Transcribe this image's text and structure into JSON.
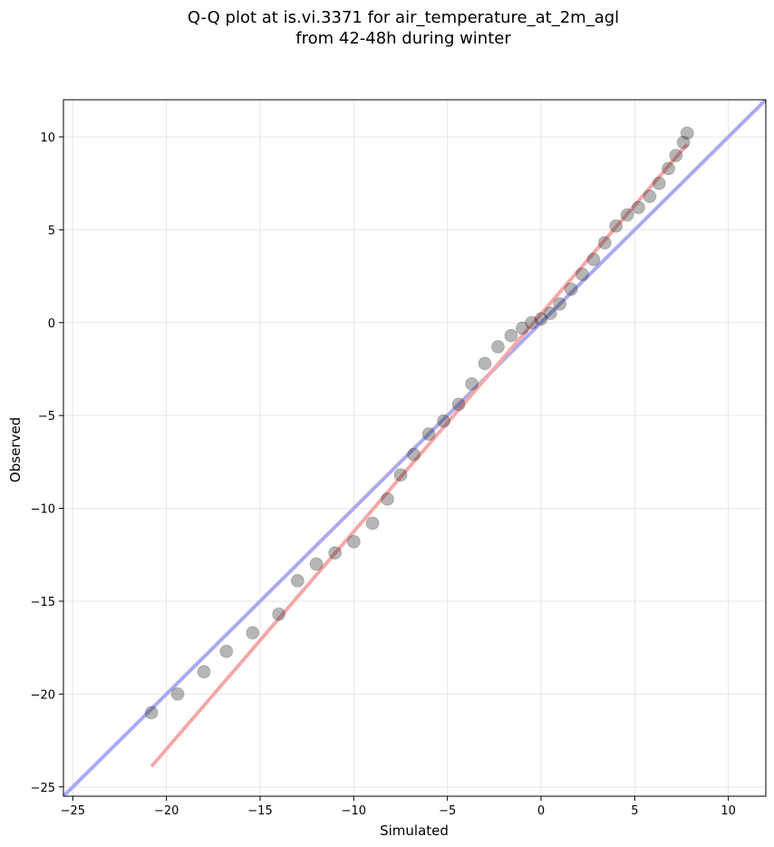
{
  "chart_data": {
    "type": "scatter",
    "title_line1": "Q-Q plot at is.vi.3371 for air_temperature_at_2m_agl",
    "title_line2": "from 42-48h during winter",
    "xlabel": "Simulated",
    "ylabel": "Observed",
    "xlim": [
      -25.5,
      12
    ],
    "ylim": [
      -25.5,
      12
    ],
    "xticks": [
      -25,
      -20,
      -15,
      -10,
      -5,
      0,
      5,
      10
    ],
    "yticks": [
      -25,
      -20,
      -15,
      -10,
      -5,
      0,
      5,
      10
    ],
    "xtick_labels": [
      "−25",
      "−20",
      "−15",
      "−10",
      "−5",
      "0",
      "5",
      "10"
    ],
    "ytick_labels": [
      "−25",
      "−20",
      "−15",
      "−10",
      "−5",
      "0",
      "5",
      "10"
    ],
    "grid": true,
    "reference_line": {
      "color": "#aaaaf0",
      "x": [
        -25.5,
        12
      ],
      "y": [
        -25.5,
        12
      ]
    },
    "fit_line": {
      "color": "#f4a8a8",
      "x": [
        -20.8,
        7.8
      ],
      "y": [
        -23.9,
        9.6
      ]
    },
    "quantile_curve": {
      "x": [
        -20.8,
        -19.4,
        -18.0,
        -16.8,
        -15.4,
        -14.0,
        -13.0,
        -12.0,
        -11.0,
        -10.0,
        -9.0,
        -8.2,
        -7.5,
        -6.8,
        -6.0,
        -5.2,
        -4.4,
        -3.7,
        -3.0,
        -2.3,
        -1.6,
        -1.0,
        -0.5,
        0.0,
        0.5,
        1.0,
        1.6,
        2.2,
        2.8,
        3.4,
        4.0,
        4.6,
        5.2,
        5.8,
        6.3,
        6.8,
        7.2,
        7.6,
        7.8
      ],
      "y": [
        -21.0,
        -20.0,
        -18.8,
        -17.7,
        -16.7,
        -15.7,
        -13.9,
        -13.0,
        -12.4,
        -11.8,
        -10.8,
        -9.5,
        -8.2,
        -7.1,
        -6.0,
        -5.3,
        -4.4,
        -3.3,
        -2.2,
        -1.3,
        -0.7,
        -0.3,
        0.0,
        0.2,
        0.5,
        1.0,
        1.8,
        2.6,
        3.4,
        4.3,
        5.2,
        5.8,
        6.2,
        6.8,
        7.5,
        8.3,
        9.0,
        9.7,
        10.2
      ]
    },
    "point_color": "#2a2a2a"
  }
}
